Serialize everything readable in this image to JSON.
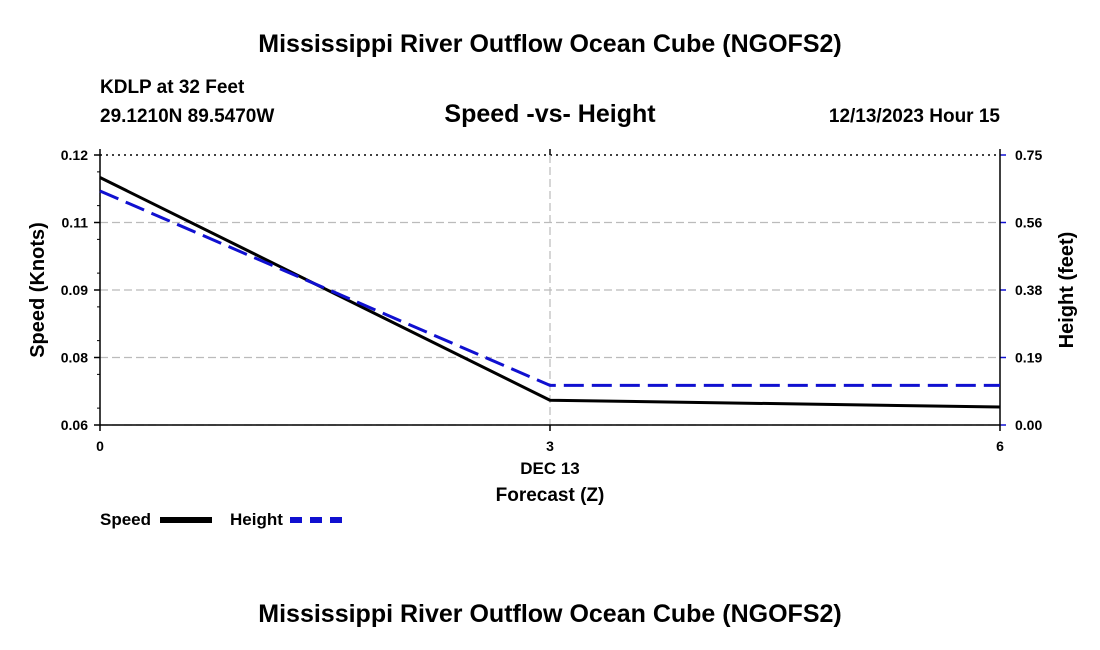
{
  "page": {
    "title": "Mississippi River Outflow Ocean Cube (NGOFS2)",
    "footer_title": "Mississippi River Outflow Ocean Cube (NGOFS2)"
  },
  "station": {
    "name": "KDLP at 32 Feet",
    "coords": "29.1210N  89.5470W",
    "datetime": "12/13/2023 Hour 15"
  },
  "chart_data": {
    "type": "line",
    "title": "Speed -vs- Height",
    "xlabel": "Forecast (Z)",
    "ylabel_left": "Speed (Knots)",
    "ylabel_right": "Height (feet)",
    "x_ticks": [
      "0",
      "3",
      "6"
    ],
    "x_sublabel": "DEC 13",
    "xlim": [
      0,
      6
    ],
    "ylim_left": [
      0.06,
      0.12
    ],
    "ylim_right": [
      0,
      0.75
    ],
    "y_ticks_left": [
      "0.12",
      "0.11",
      "0.09",
      "0.08",
      "0.06"
    ],
    "y_ticks_right": [
      "0.75",
      "0.56",
      "0.38",
      "0.19",
      "0.00"
    ],
    "grid": true,
    "series": [
      {
        "name": "Speed",
        "axis": "left",
        "color": "#000000",
        "style": "solid",
        "x": [
          0,
          3,
          6
        ],
        "values": [
          0.115,
          0.0655,
          0.064
        ]
      },
      {
        "name": "Height",
        "axis": "right",
        "color": "#1010d0",
        "style": "dashed",
        "x": [
          0,
          3,
          6
        ],
        "values": [
          0.65,
          0.11,
          0.11
        ]
      }
    ],
    "legend": {
      "placement": "bottom-left",
      "entries": [
        "Speed",
        "Height"
      ]
    }
  }
}
